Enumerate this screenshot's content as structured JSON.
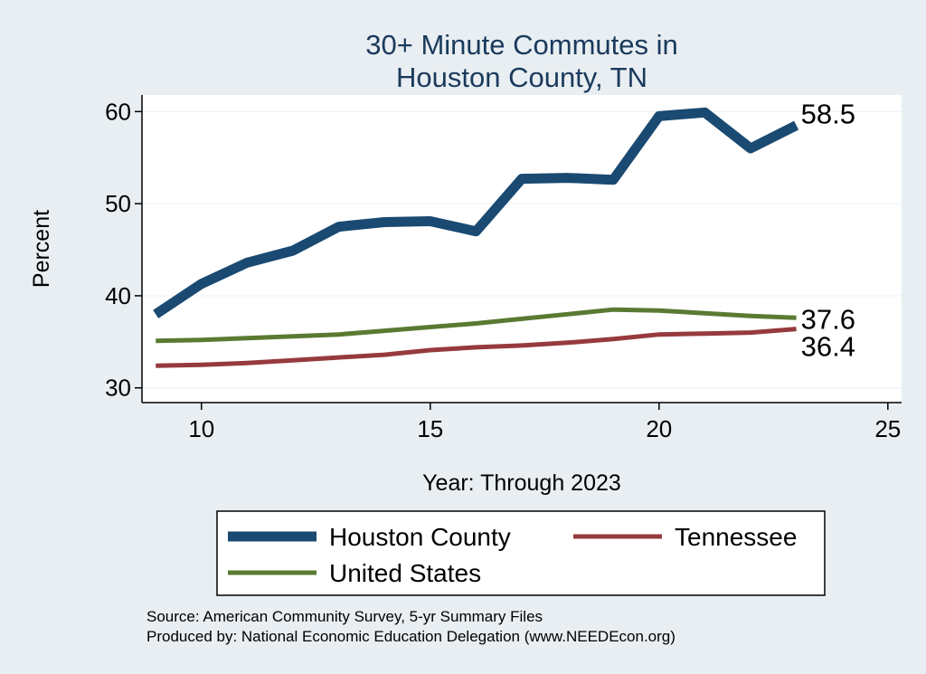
{
  "chart_data": {
    "type": "line",
    "title": [
      "30+ Minute Commutes in",
      "Houston County, TN"
    ],
    "xlabel": "Year: Through 2023",
    "ylabel": "Percent",
    "xlim": [
      8.7,
      25.3
    ],
    "ylim": [
      28.4,
      61.8
    ],
    "xticks": [
      10,
      15,
      20,
      25
    ],
    "yticks": [
      30,
      40,
      50,
      60
    ],
    "grid": true,
    "x": [
      9,
      10,
      11,
      12,
      13,
      14,
      15,
      16,
      17,
      18,
      19,
      20,
      21,
      22,
      23
    ],
    "series": [
      {
        "name": "Houston County",
        "color": "#1a4a72",
        "values": [
          38.0,
          41.3,
          43.6,
          44.9,
          47.5,
          48.0,
          48.1,
          47.0,
          52.7,
          52.8,
          52.6,
          59.5,
          59.9,
          56.0,
          58.5
        ],
        "end_label": "58.5"
      },
      {
        "name": "Tennessee",
        "color": "#963a3e",
        "values": [
          32.4,
          32.5,
          32.7,
          33.0,
          33.3,
          33.6,
          34.1,
          34.4,
          34.6,
          34.9,
          35.3,
          35.8,
          35.9,
          36.0,
          36.4
        ],
        "end_label": "36.4"
      },
      {
        "name": "United States",
        "color": "#5a7a32",
        "values": [
          35.1,
          35.2,
          35.4,
          35.6,
          35.8,
          36.2,
          36.6,
          37.0,
          37.5,
          38.0,
          38.5,
          38.4,
          38.1,
          37.8,
          37.6
        ],
        "end_label": "37.6"
      }
    ],
    "legend": [
      "Houston County",
      "Tennessee",
      "United States"
    ],
    "source": [
      "Source: American Community Survey, 5-yr Summary Files",
      "Produced by: National Economic Education Delegation (www.NEEDEcon.org)"
    ]
  }
}
